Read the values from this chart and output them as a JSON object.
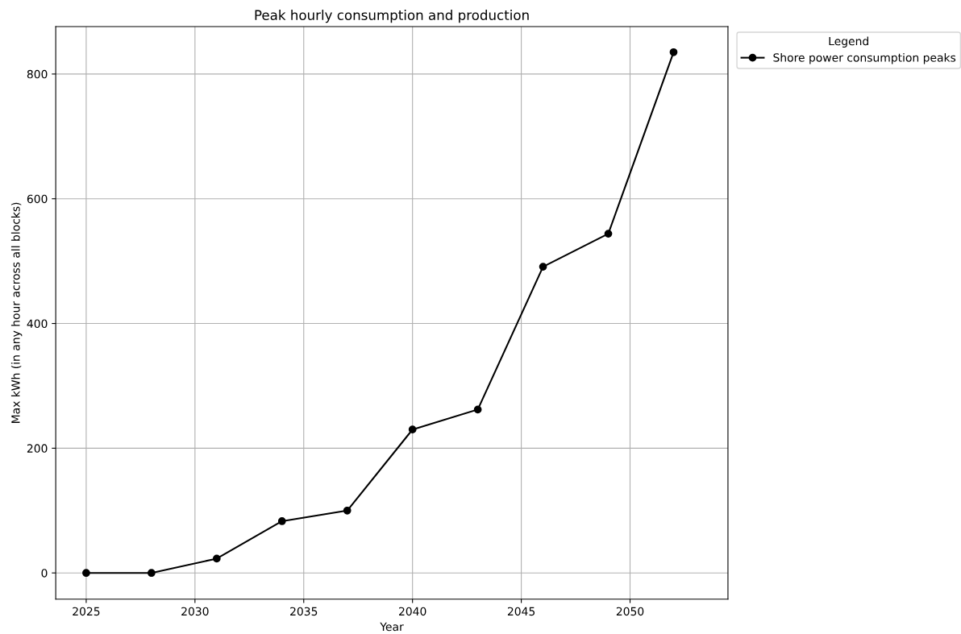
{
  "chart_data": {
    "type": "line",
    "title": "Peak hourly consumption and production",
    "xlabel": "Year",
    "ylabel": "Max kWh (in any hour across all blocks)",
    "legend_title": "Legend",
    "x": [
      2025,
      2028,
      2031,
      2034,
      2037,
      2040,
      2043,
      2046,
      2049,
      2052
    ],
    "series": [
      {
        "name": "Shore power consumption peaks",
        "color": "#000000",
        "values": [
          0,
          0,
          23,
          83,
          100,
          230,
          262,
          491,
          544,
          835
        ]
      }
    ],
    "xlim": [
      2023.6,
      2054.5
    ],
    "xticks": [
      2025,
      2030,
      2035,
      2040,
      2045,
      2050
    ],
    "ylim": [
      -42,
      876
    ],
    "yticks": [
      0,
      200,
      400,
      600,
      800
    ],
    "grid": true,
    "legend": "top right",
    "marker": "circle",
    "line_style": "solid"
  }
}
